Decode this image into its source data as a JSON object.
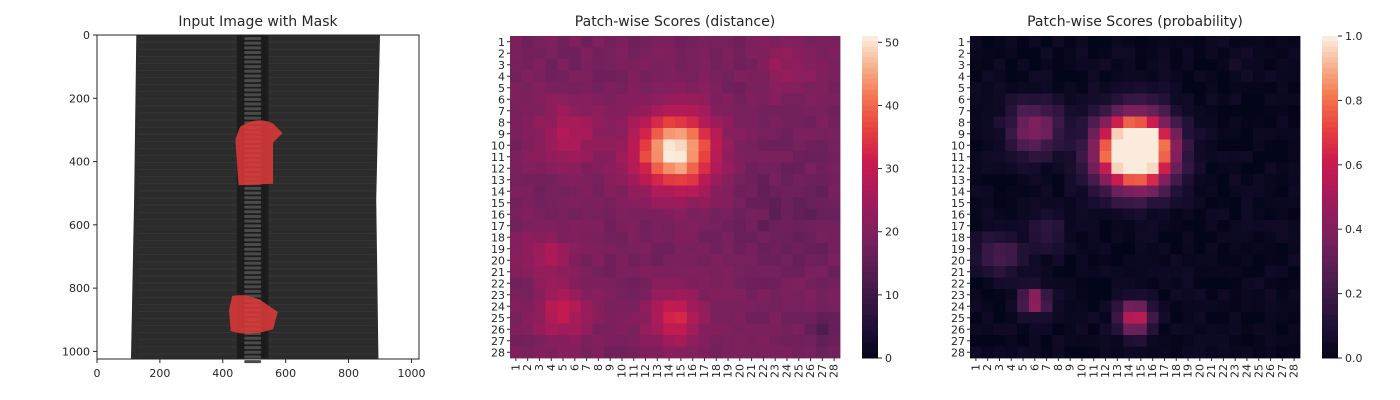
{
  "chart_data": [
    {
      "type": "image",
      "title": "Input Image with Mask",
      "x_ticks": [
        "0",
        "200",
        "400",
        "600",
        "800",
        "1000"
      ],
      "y_ticks": [
        "0",
        "200",
        "400",
        "600",
        "800",
        "1000"
      ],
      "xlim": [
        0,
        1024
      ],
      "ylim": [
        1024,
        0
      ],
      "colors": {
        "fabric": "#2c2c2c",
        "zipper": "#3a3a3a",
        "mask": "#e23a3a"
      }
    },
    {
      "type": "heatmap",
      "title": "Patch-wise Scores (distance)",
      "rows": 28,
      "cols": 28,
      "tick_labels": [
        "1",
        "2",
        "3",
        "4",
        "5",
        "6",
        "7",
        "8",
        "9",
        "10",
        "11",
        "12",
        "13",
        "14",
        "15",
        "16",
        "17",
        "18",
        "19",
        "20",
        "21",
        "22",
        "23",
        "24",
        "25",
        "26",
        "27",
        "28"
      ],
      "colorbar": {
        "min": 0,
        "max": 51,
        "ticks": [
          "0",
          "10",
          "20",
          "30",
          "40",
          "50"
        ]
      },
      "baseline": 19,
      "blobs": [
        {
          "row": 10.5,
          "col": 14.5,
          "sigma": 2.3,
          "peak": 33
        },
        {
          "row": 25.0,
          "col": 14.5,
          "sigma": 1.6,
          "peak": 14
        },
        {
          "row": 24.5,
          "col": 5.0,
          "sigma": 1.6,
          "peak": 11
        },
        {
          "row": 9.0,
          "col": 5.5,
          "sigma": 2.0,
          "peak": 8
        },
        {
          "row": 19.5,
          "col": 3.5,
          "sigma": 1.3,
          "peak": 8
        },
        {
          "row": 3.5,
          "col": 24.0,
          "sigma": 1.6,
          "peak": 5
        },
        {
          "row": 26.0,
          "col": 27.0,
          "sigma": 1.0,
          "peak": -5
        },
        {
          "row": 16.0,
          "col": 24.5,
          "sigma": 3.0,
          "peak": -3
        }
      ]
    },
    {
      "type": "heatmap",
      "title": "Patch-wise Scores (probability)",
      "rows": 28,
      "cols": 28,
      "tick_labels": [
        "1",
        "2",
        "3",
        "4",
        "5",
        "6",
        "7",
        "8",
        "9",
        "10",
        "11",
        "12",
        "13",
        "14",
        "15",
        "16",
        "17",
        "18",
        "19",
        "20",
        "21",
        "22",
        "23",
        "24",
        "25",
        "26",
        "27",
        "28"
      ],
      "colorbar": {
        "min": 0,
        "max": 1,
        "ticks": [
          "0.0",
          "0.2",
          "0.4",
          "0.6",
          "0.8",
          "1.0"
        ]
      },
      "baseline": 0.02,
      "blobs": [
        {
          "row": 10.5,
          "col": 14.5,
          "sigma": 2.1,
          "peak": 1.6
        },
        {
          "row": 25.0,
          "col": 14.5,
          "sigma": 1.0,
          "peak": 0.6
        },
        {
          "row": 23.5,
          "col": 6.0,
          "sigma": 0.8,
          "peak": 0.5
        },
        {
          "row": 8.5,
          "col": 6.0,
          "sigma": 1.6,
          "peak": 0.38
        },
        {
          "row": 19.5,
          "col": 3.0,
          "sigma": 1.2,
          "peak": 0.25
        },
        {
          "row": 17.5,
          "col": 7.0,
          "sigma": 1.2,
          "peak": 0.12
        },
        {
          "row": 3.5,
          "col": 24.0,
          "sigma": 0.9,
          "peak": 0.05
        }
      ]
    }
  ]
}
